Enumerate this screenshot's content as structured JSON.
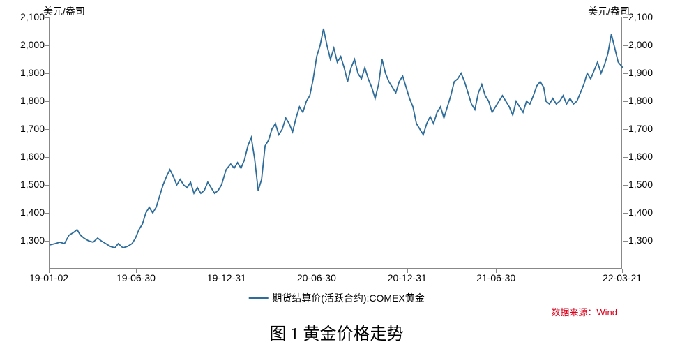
{
  "chart": {
    "type": "line",
    "y_axis": {
      "title_left": "美元/盎司",
      "title_right": "美元/盎司",
      "min": 1200,
      "max": 2100,
      "tick_step": 100,
      "ticks": [
        1300,
        1400,
        1500,
        1600,
        1700,
        1800,
        1900,
        2000,
        2100
      ],
      "label_fontsize": 14,
      "color": "#000000"
    },
    "x_axis": {
      "tick_labels": [
        "19-01-02",
        "19-06-30",
        "19-12-31",
        "20-06-30",
        "20-12-31",
        "21-06-30",
        "22-03-21"
      ],
      "tick_positions": [
        0.0,
        0.152,
        0.31,
        0.467,
        0.625,
        0.78,
        1.0
      ],
      "label_fontsize": 14,
      "color": "#000000"
    },
    "series": {
      "name": "期货结算价(活跃合约):COMEX黄金",
      "color": "#2e6c99",
      "line_width": 1.8,
      "points": [
        [
          0.0,
          1285
        ],
        [
          0.01,
          1290
        ],
        [
          0.018,
          1295
        ],
        [
          0.026,
          1290
        ],
        [
          0.034,
          1320
        ],
        [
          0.042,
          1330
        ],
        [
          0.048,
          1340
        ],
        [
          0.054,
          1320
        ],
        [
          0.06,
          1310
        ],
        [
          0.068,
          1300
        ],
        [
          0.076,
          1295
        ],
        [
          0.084,
          1310
        ],
        [
          0.09,
          1300
        ],
        [
          0.098,
          1290
        ],
        [
          0.106,
          1280
        ],
        [
          0.114,
          1275
        ],
        [
          0.12,
          1290
        ],
        [
          0.128,
          1275
        ],
        [
          0.136,
          1280
        ],
        [
          0.144,
          1290
        ],
        [
          0.15,
          1310
        ],
        [
          0.156,
          1340
        ],
        [
          0.162,
          1360
        ],
        [
          0.168,
          1400
        ],
        [
          0.174,
          1420
        ],
        [
          0.18,
          1400
        ],
        [
          0.186,
          1420
        ],
        [
          0.192,
          1460
        ],
        [
          0.198,
          1500
        ],
        [
          0.204,
          1530
        ],
        [
          0.21,
          1555
        ],
        [
          0.216,
          1530
        ],
        [
          0.222,
          1500
        ],
        [
          0.228,
          1520
        ],
        [
          0.234,
          1500
        ],
        [
          0.24,
          1490
        ],
        [
          0.246,
          1510
        ],
        [
          0.252,
          1470
        ],
        [
          0.258,
          1490
        ],
        [
          0.264,
          1470
        ],
        [
          0.27,
          1480
        ],
        [
          0.276,
          1510
        ],
        [
          0.282,
          1490
        ],
        [
          0.288,
          1470
        ],
        [
          0.294,
          1480
        ],
        [
          0.3,
          1500
        ],
        [
          0.308,
          1555
        ],
        [
          0.316,
          1575
        ],
        [
          0.322,
          1560
        ],
        [
          0.328,
          1580
        ],
        [
          0.334,
          1560
        ],
        [
          0.34,
          1590
        ],
        [
          0.346,
          1640
        ],
        [
          0.352,
          1670
        ],
        [
          0.358,
          1590
        ],
        [
          0.364,
          1480
        ],
        [
          0.37,
          1520
        ],
        [
          0.376,
          1640
        ],
        [
          0.382,
          1660
        ],
        [
          0.388,
          1700
        ],
        [
          0.394,
          1720
        ],
        [
          0.4,
          1680
        ],
        [
          0.406,
          1700
        ],
        [
          0.412,
          1740
        ],
        [
          0.418,
          1720
        ],
        [
          0.424,
          1690
        ],
        [
          0.43,
          1740
        ],
        [
          0.436,
          1780
        ],
        [
          0.442,
          1760
        ],
        [
          0.448,
          1800
        ],
        [
          0.454,
          1820
        ],
        [
          0.46,
          1880
        ],
        [
          0.466,
          1960
        ],
        [
          0.472,
          2000
        ],
        [
          0.478,
          2060
        ],
        [
          0.484,
          2000
        ],
        [
          0.49,
          1950
        ],
        [
          0.496,
          1990
        ],
        [
          0.502,
          1940
        ],
        [
          0.508,
          1960
        ],
        [
          0.514,
          1920
        ],
        [
          0.52,
          1870
        ],
        [
          0.526,
          1920
        ],
        [
          0.532,
          1950
        ],
        [
          0.538,
          1900
        ],
        [
          0.544,
          1880
        ],
        [
          0.55,
          1920
        ],
        [
          0.556,
          1880
        ],
        [
          0.562,
          1850
        ],
        [
          0.568,
          1810
        ],
        [
          0.574,
          1860
        ],
        [
          0.58,
          1950
        ],
        [
          0.586,
          1900
        ],
        [
          0.592,
          1870
        ],
        [
          0.598,
          1850
        ],
        [
          0.604,
          1830
        ],
        [
          0.61,
          1870
        ],
        [
          0.616,
          1890
        ],
        [
          0.622,
          1850
        ],
        [
          0.628,
          1810
        ],
        [
          0.634,
          1780
        ],
        [
          0.64,
          1720
        ],
        [
          0.646,
          1700
        ],
        [
          0.652,
          1680
        ],
        [
          0.658,
          1720
        ],
        [
          0.664,
          1745
        ],
        [
          0.67,
          1720
        ],
        [
          0.676,
          1760
        ],
        [
          0.682,
          1780
        ],
        [
          0.688,
          1740
        ],
        [
          0.694,
          1780
        ],
        [
          0.7,
          1820
        ],
        [
          0.706,
          1870
        ],
        [
          0.712,
          1880
        ],
        [
          0.718,
          1900
        ],
        [
          0.724,
          1870
        ],
        [
          0.73,
          1830
        ],
        [
          0.736,
          1790
        ],
        [
          0.742,
          1770
        ],
        [
          0.748,
          1830
        ],
        [
          0.754,
          1860
        ],
        [
          0.76,
          1820
        ],
        [
          0.766,
          1800
        ],
        [
          0.772,
          1760
        ],
        [
          0.778,
          1780
        ],
        [
          0.784,
          1800
        ],
        [
          0.79,
          1820
        ],
        [
          0.796,
          1800
        ],
        [
          0.802,
          1780
        ],
        [
          0.808,
          1750
        ],
        [
          0.814,
          1800
        ],
        [
          0.82,
          1780
        ],
        [
          0.826,
          1760
        ],
        [
          0.832,
          1800
        ],
        [
          0.838,
          1790
        ],
        [
          0.844,
          1820
        ],
        [
          0.85,
          1855
        ],
        [
          0.856,
          1870
        ],
        [
          0.862,
          1850
        ],
        [
          0.866,
          1800
        ],
        [
          0.872,
          1790
        ],
        [
          0.878,
          1810
        ],
        [
          0.884,
          1790
        ],
        [
          0.89,
          1800
        ],
        [
          0.896,
          1820
        ],
        [
          0.902,
          1790
        ],
        [
          0.908,
          1810
        ],
        [
          0.914,
          1790
        ],
        [
          0.92,
          1800
        ],
        [
          0.926,
          1830
        ],
        [
          0.932,
          1860
        ],
        [
          0.938,
          1900
        ],
        [
          0.944,
          1880
        ],
        [
          0.95,
          1910
        ],
        [
          0.956,
          1940
        ],
        [
          0.962,
          1900
        ],
        [
          0.968,
          1930
        ],
        [
          0.974,
          1970
        ],
        [
          0.98,
          2040
        ],
        [
          0.986,
          1990
        ],
        [
          0.992,
          1940
        ],
        [
          1.0,
          1920
        ]
      ]
    },
    "plot": {
      "background_color": "#ffffff",
      "border_color": "#888888",
      "grid": false
    },
    "legend": {
      "label": "期货结算价(活跃合约):COMEX黄金",
      "position": "bottom-center",
      "fontsize": 14
    },
    "source": {
      "prefix": "数据来源：",
      "text": "Wind",
      "color": "#d9001b",
      "fontsize": 13
    },
    "caption": {
      "text": "图 1 黄金价格走势",
      "fontsize": 24,
      "font_family": "SimSun"
    }
  }
}
